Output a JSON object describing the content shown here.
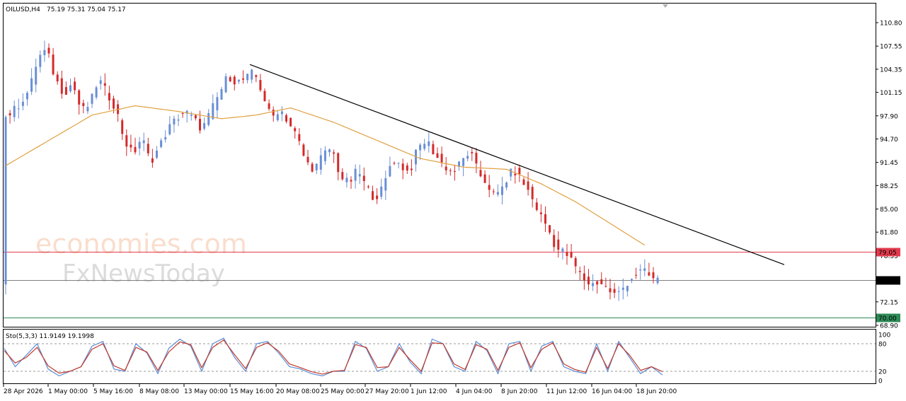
{
  "header": {
    "symbol_tf": "OILUSD,H4",
    "ohlc": "75.19 75.31 75.04 75.17"
  },
  "indicator": {
    "label": "Sto(5,3,3) 11.9149 19.1998",
    "axis_ticks": [
      "100",
      "80",
      "20",
      "0"
    ],
    "levels": [
      80,
      20
    ]
  },
  "watermark": {
    "line1": "economies.com",
    "line2": "FxNewsToday"
  },
  "colors": {
    "bull": "#6a8fd6",
    "bear": "#d42a2a",
    "ma": "#e0a040",
    "trendline": "#000000",
    "resistance": "#e23b4e",
    "support": "#2e8b57",
    "current": "#808080",
    "stoch_main": "#5b8cd6",
    "stoch_signal": "#c0392b"
  },
  "chart_data": [
    {
      "type": "candlestick",
      "title": "OILUSD,H4",
      "price_ticks": [
        "110.80",
        "107.55",
        "104.35",
        "101.15",
        "97.90",
        "94.70",
        "91.45",
        "88.25",
        "85.00",
        "81.80",
        "78.55",
        "75.35",
        "72.15",
        "68.90"
      ],
      "ylim": [
        68.9,
        110.8
      ],
      "x_tick_labels": [
        "28 Apr 2026",
        "1 May 00:00",
        "5 May 16:00",
        "8 May 08:00",
        "13 May 00:00",
        "15 May 16:00",
        "20 May 08:00",
        "25 May 00:00",
        "27 May 20:00",
        "1 Jun 12:00",
        "4 Jun 04:00",
        "8 Jun 20:00",
        "11 Jun 12:00",
        "16 Jun 04:00",
        "18 Jun 20:00"
      ],
      "horizontal_levels": [
        {
          "label": "79.05",
          "value": 79.05
        },
        {
          "label": "75.17",
          "value": 75.17
        },
        {
          "label": "70.00",
          "value": 70.0
        }
      ],
      "trendline": {
        "from": {
          "x": "15 May 16:00",
          "y": 105.0
        },
        "to": {
          "y": 77.3
        }
      },
      "price_path_approx": [
        [
          0,
          97.5
        ],
        [
          3,
          99.0
        ],
        [
          6,
          101.5
        ],
        [
          8,
          106.0
        ],
        [
          10,
          107.0
        ],
        [
          12,
          103.0
        ],
        [
          14,
          101.0
        ],
        [
          16,
          102.5
        ],
        [
          18,
          98.5
        ],
        [
          20,
          99.5
        ],
        [
          22,
          103.0
        ],
        [
          24,
          101.0
        ],
        [
          26,
          99.0
        ],
        [
          28,
          94.5
        ],
        [
          30,
          92.5
        ],
        [
          32,
          95.0
        ],
        [
          34,
          91.5
        ],
        [
          36,
          93.5
        ],
        [
          38,
          96.0
        ],
        [
          40,
          97.5
        ],
        [
          42,
          98.5
        ],
        [
          44,
          97.5
        ],
        [
          46,
          96.0
        ],
        [
          48,
          98.5
        ],
        [
          50,
          101.0
        ],
        [
          52,
          103.5
        ],
        [
          54,
          102.5
        ],
        [
          56,
          103.0
        ],
        [
          58,
          104.0
        ],
        [
          60,
          101.0
        ],
        [
          62,
          97.5
        ],
        [
          64,
          99.0
        ],
        [
          66,
          97.0
        ],
        [
          68,
          95.0
        ],
        [
          70,
          91.5
        ],
        [
          72,
          90.5
        ],
        [
          74,
          92.5
        ],
        [
          76,
          93.5
        ],
        [
          78,
          89.5
        ],
        [
          80,
          88.5
        ],
        [
          82,
          90.5
        ],
        [
          84,
          88.0
        ],
        [
          86,
          86.5
        ],
        [
          88,
          88.0
        ],
        [
          90,
          92.0
        ],
        [
          92,
          91.0
        ],
        [
          94,
          90.0
        ],
        [
          96,
          93.5
        ],
        [
          98,
          94.5
        ],
        [
          100,
          92.5
        ],
        [
          102,
          91.0
        ],
        [
          104,
          90.0
        ],
        [
          106,
          91.5
        ],
        [
          108,
          93.0
        ],
        [
          110,
          90.0
        ],
        [
          112,
          88.5
        ],
        [
          114,
          86.5
        ],
        [
          116,
          88.5
        ],
        [
          118,
          90.5
        ],
        [
          120,
          89.0
        ],
        [
          122,
          87.0
        ],
        [
          124,
          84.5
        ],
        [
          126,
          82.5
        ],
        [
          128,
          79.5
        ],
        [
          130,
          79.0
        ],
        [
          132,
          77.5
        ],
        [
          134,
          75.5
        ],
        [
          136,
          74.5
        ],
        [
          138,
          75.0
        ],
        [
          140,
          73.8
        ],
        [
          142,
          73.0
        ],
        [
          144,
          74.5
        ],
        [
          146,
          75.8
        ],
        [
          148,
          76.5
        ],
        [
          150,
          75.5
        ],
        [
          151,
          75.17
        ]
      ],
      "ma_path_approx": [
        [
          0,
          91.0
        ],
        [
          10,
          94.5
        ],
        [
          20,
          98.0
        ],
        [
          30,
          99.3
        ],
        [
          40,
          98.5
        ],
        [
          50,
          97.5
        ],
        [
          58,
          98.0
        ],
        [
          66,
          99.0
        ],
        [
          76,
          97.0
        ],
        [
          86,
          94.5
        ],
        [
          96,
          92.0
        ],
        [
          106,
          90.8
        ],
        [
          116,
          90.5
        ],
        [
          124,
          88.5
        ],
        [
          132,
          86.0
        ],
        [
          140,
          83.0
        ],
        [
          148,
          80.0
        ]
      ]
    },
    {
      "type": "line",
      "title": "Sto(5,3,3)",
      "ylim": [
        0,
        100
      ],
      "series": [
        {
          "name": "11.9149",
          "values": [
            70,
            30,
            55,
            80,
            25,
            10,
            20,
            30,
            75,
            85,
            25,
            20,
            80,
            60,
            15,
            70,
            90,
            75,
            20,
            80,
            92,
            50,
            20,
            80,
            85,
            60,
            30,
            25,
            15,
            10,
            20,
            20,
            85,
            70,
            20,
            30,
            80,
            40,
            15,
            90,
            80,
            30,
            20,
            85,
            65,
            15,
            80,
            85,
            20,
            75,
            85,
            30,
            20,
            15,
            80,
            20,
            85,
            50,
            15,
            30,
            12
          ]
        },
        {
          "name": "19.1998",
          "values": [
            65,
            38,
            50,
            72,
            32,
            16,
            20,
            30,
            68,
            80,
            32,
            22,
            72,
            62,
            22,
            62,
            84,
            78,
            28,
            72,
            88,
            56,
            26,
            72,
            82,
            64,
            36,
            28,
            19,
            14,
            20,
            22,
            78,
            72,
            28,
            30,
            72,
            45,
            20,
            82,
            80,
            36,
            24,
            78,
            68,
            22,
            72,
            82,
            28,
            68,
            82,
            36,
            24,
            18,
            72,
            26,
            80,
            55,
            22,
            30,
            19
          ]
        }
      ]
    }
  ]
}
